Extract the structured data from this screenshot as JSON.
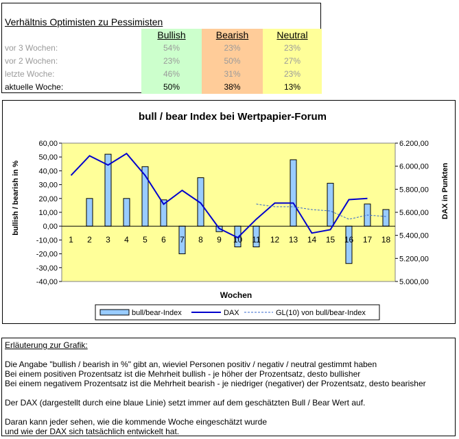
{
  "sentiment": {
    "title": "Verhältnis Optimisten zu Pessimisten",
    "headers": {
      "bullish": "Bullish",
      "bearish": "Bearish",
      "neutral": "Neutral"
    },
    "rows": [
      {
        "label": "vor 3 Wochen:",
        "bullish": "54%",
        "bearish": "23%",
        "neutral": "23%"
      },
      {
        "label": "vor 2 Wochen:",
        "bullish": "23%",
        "bearish": "50%",
        "neutral": "27%"
      },
      {
        "label": "letzte Woche:",
        "bullish": "46%",
        "bearish": "31%",
        "neutral": "23%"
      },
      {
        "label": "aktuelle Woche:",
        "bullish": "50%",
        "bearish": "38%",
        "neutral": "13%"
      }
    ]
  },
  "chart_data": {
    "type": "bar",
    "title": "bull / bear Index bei Wertpapier-Forum",
    "xlabel": "Wochen",
    "ylabel": "bullish / bearish in %",
    "y2label": "DAX in Punkten",
    "categories": [
      "1",
      "2",
      "3",
      "4",
      "5",
      "6",
      "7",
      "8",
      "9",
      "10",
      "11",
      "12",
      "13",
      "14",
      "15",
      "16",
      "17",
      "18"
    ],
    "ylim": [
      -40,
      60
    ],
    "y2lim": [
      5000,
      6200
    ],
    "yticks": [
      "60,00",
      "50,00",
      "40,00",
      "30,00",
      "20,00",
      "10,00",
      "0,00",
      "-10,00",
      "-20,00",
      "-30,00",
      "-40,00"
    ],
    "y2ticks": [
      "6.200,00",
      "6.000,00",
      "5.800,00",
      "5.600,00",
      "5.400,00",
      "5.200,00",
      "5.000,00"
    ],
    "series": [
      {
        "name": "bull/bear-Index",
        "kind": "bar",
        "axis": "left",
        "color": "#99ccff",
        "values": [
          0,
          20,
          52,
          20,
          43,
          19,
          -20,
          35,
          -4,
          -15,
          -15,
          0,
          48,
          0,
          31,
          -27,
          16,
          12
        ]
      },
      {
        "name": "DAX",
        "kind": "line",
        "axis": "right",
        "color": "#0000cc",
        "values": [
          5920,
          6090,
          6010,
          6110,
          5920,
          5670,
          5790,
          5680,
          5460,
          5380,
          5540,
          5680,
          5680,
          5420,
          5450,
          5710,
          5720,
          null
        ]
      },
      {
        "name": "GL(10) von bull/bear-Index",
        "kind": "dashed",
        "axis": "left",
        "color": "#3366cc",
        "values": [
          null,
          null,
          null,
          null,
          null,
          null,
          null,
          null,
          null,
          null,
          16,
          14,
          14,
          12,
          11,
          5,
          8,
          7
        ]
      }
    ],
    "grid": false,
    "legend": "bottom"
  },
  "explanation": {
    "heading": "Erläuterung zur Grafik:",
    "lines": [
      "Die Angabe \"bullish / bearish in %\" gibt an, wieviel Personen positiv / negativ / neutral gestimmt haben",
      "Bei einem positiven Prozentsatz ist die Mehrheit bullish - je höher der Prozentsatz, desto bullisher",
      "Bei einem negativem Prozentsatz ist die Mehrheit bearish - je niedriger (negativer) der Prozentsatz, desto bearisher",
      "Der DAX (dargestellt durch eine blaue Linie) setzt immer auf dem geschätzten Bull / Bear Wert auf.",
      "Daran kann jeder sehen, wie die kommende Woche eingeschätzt wurde",
      "und wie der DAX sich tatsächlich entwickelt hat."
    ]
  }
}
